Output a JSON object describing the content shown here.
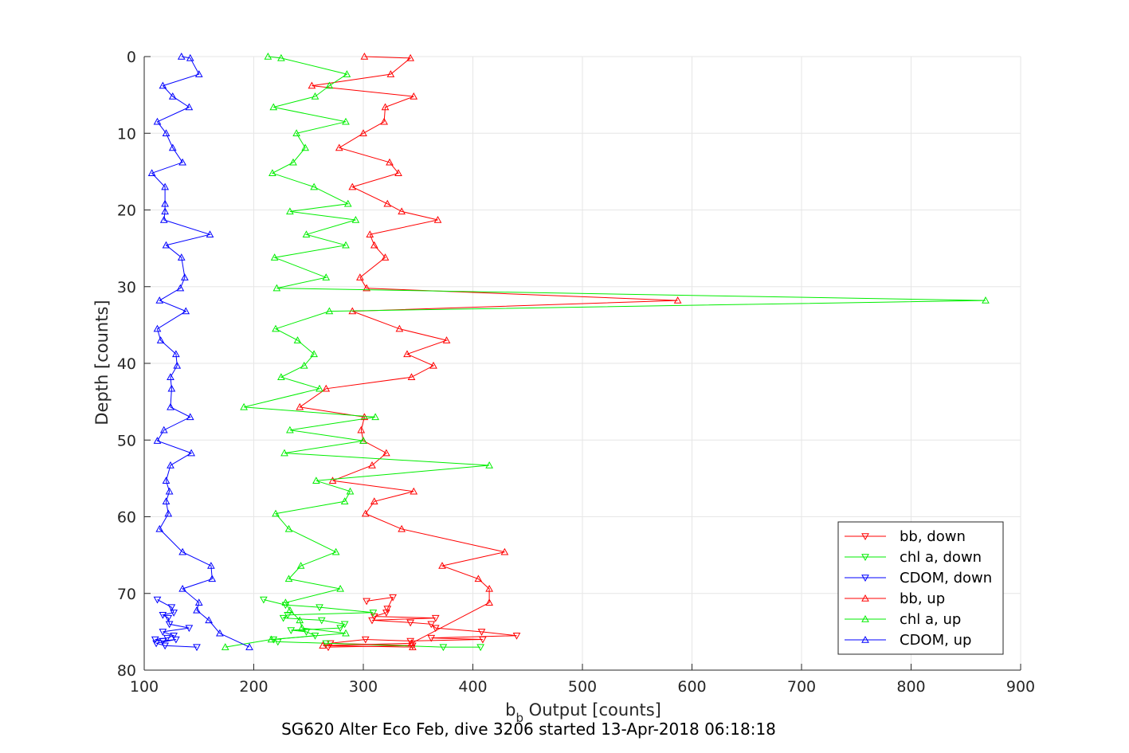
{
  "chart_data": {
    "type": "line",
    "title": "",
    "xlabel": "b_b Output [counts]",
    "xlabel_main": "b",
    "xlabel_sub": "b",
    "xlabel_rest": " Output [counts]",
    "ylabel": "Depth [counts]",
    "xlim": [
      100,
      900
    ],
    "ylim": [
      0,
      80
    ],
    "y_reversed": true,
    "grid": true,
    "legend_position": "bottom-right",
    "xticks": [
      "100",
      "200",
      "300",
      "400",
      "500",
      "600",
      "700",
      "800",
      "900"
    ],
    "yticks": [
      "0",
      "10",
      "20",
      "30",
      "40",
      "50",
      "60",
      "70",
      "80"
    ],
    "series": [
      {
        "name": "bb, down",
        "color": "#ff0000",
        "marker": "triangle-down",
        "x": [
          303,
          327,
          322,
          321,
          310,
          366,
          308,
          343,
          362,
          366,
          408,
          440,
          362,
          409,
          343,
          302,
          270,
          345,
          268
        ],
        "y": [
          71.0,
          70.5,
          72.0,
          72.5,
          73.0,
          73.2,
          73.5,
          73.8,
          74.0,
          74.5,
          75.0,
          75.5,
          75.8,
          76.0,
          76.2,
          76.0,
          76.5,
          76.8,
          77.0
        ]
      },
      {
        "name": "chl a, down",
        "color": "#00ee00",
        "marker": "triangle-down",
        "x": [
          209,
          229,
          260,
          309,
          231,
          227,
          262,
          283,
          279,
          234,
          248,
          256,
          218,
          222,
          266,
          373,
          407
        ],
        "y": [
          70.8,
          71.5,
          71.8,
          72.5,
          72.8,
          73.2,
          73.5,
          74.0,
          74.5,
          74.8,
          75.0,
          75.5,
          76.0,
          76.3,
          76.5,
          77.0,
          77.0
        ]
      },
      {
        "name": "CDOM, down",
        "color": "#0000ff",
        "marker": "triangle-down",
        "x": [
          112,
          125,
          127,
          117,
          122,
          123,
          141,
          117,
          127,
          121,
          110,
          117,
          129,
          111,
          119,
          148
        ],
        "y": [
          70.8,
          71.8,
          72.5,
          72.8,
          73.2,
          74.0,
          74.5,
          75.0,
          75.5,
          75.8,
          76.0,
          76.2,
          76.0,
          76.5,
          76.8,
          77.0
        ]
      },
      {
        "name": "bb, up",
        "color": "#ff0000",
        "marker": "triangle-up",
        "x": [
          301,
          343,
          325,
          253,
          346,
          320,
          319,
          300,
          278,
          324,
          332,
          290,
          322,
          335,
          368,
          306,
          310,
          320,
          297,
          303,
          587,
          290,
          333,
          376,
          340,
          364,
          344,
          266,
          242,
          301,
          298,
          300,
          321,
          308,
          272,
          346,
          310,
          302,
          335,
          429,
          372,
          405,
          415,
          415,
          344,
          263,
          345
        ],
        "y": [
          0.0,
          0.2,
          2.3,
          3.8,
          5.2,
          6.6,
          8.5,
          10.0,
          11.9,
          13.8,
          15.2,
          17.0,
          19.2,
          20.2,
          21.3,
          23.2,
          24.6,
          26.2,
          28.8,
          30.2,
          31.8,
          33.2,
          35.5,
          37.0,
          38.8,
          40.3,
          41.8,
          43.3,
          45.7,
          47.0,
          48.7,
          50.1,
          51.7,
          53.3,
          55.3,
          56.7,
          58.0,
          59.6,
          61.6,
          64.6,
          66.4,
          68.1,
          69.4,
          71.2,
          76.5,
          76.8,
          77.0
        ]
      },
      {
        "name": "chl a, up",
        "color": "#00ee00",
        "marker": "triangle-up",
        "x": [
          213,
          225,
          285,
          269,
          256,
          218,
          284,
          239,
          247,
          236,
          217,
          255,
          286,
          233,
          293,
          248,
          284,
          219,
          266,
          221,
          868,
          269,
          220,
          240,
          255,
          246,
          225,
          260,
          191,
          311,
          233,
          300,
          228,
          415,
          257,
          288,
          283,
          220,
          232,
          275,
          243,
          232,
          279,
          229,
          233,
          242,
          244,
          284,
          216,
          174
        ],
        "y": [
          0.0,
          0.2,
          2.3,
          3.8,
          5.2,
          6.6,
          8.5,
          10.0,
          11.9,
          13.8,
          15.2,
          17.0,
          19.2,
          20.2,
          21.3,
          23.2,
          24.6,
          26.2,
          28.8,
          30.2,
          31.8,
          33.2,
          35.5,
          37.0,
          38.8,
          40.3,
          41.8,
          43.3,
          45.7,
          47.0,
          48.7,
          50.1,
          51.7,
          53.3,
          55.3,
          56.7,
          58.0,
          59.6,
          61.6,
          64.6,
          66.4,
          68.1,
          69.4,
          71.2,
          72.2,
          73.5,
          74.5,
          75.2,
          76.0,
          77.0
        ]
      },
      {
        "name": "CDOM, up",
        "color": "#0000ff",
        "marker": "triangle-up",
        "x": [
          134,
          142,
          150,
          117,
          126,
          141,
          112,
          120,
          126,
          135,
          107,
          119,
          119,
          119,
          118,
          160,
          120,
          134,
          137,
          133,
          114,
          138,
          112,
          115,
          129,
          130,
          124,
          125,
          124,
          142,
          118,
          112,
          143,
          124,
          120,
          123,
          120,
          122,
          114,
          135,
          161,
          162,
          135,
          150,
          148,
          159,
          169,
          196
        ],
        "y": [
          0.0,
          0.2,
          2.3,
          3.8,
          5.2,
          6.6,
          8.5,
          10.0,
          11.9,
          13.8,
          15.2,
          17.0,
          19.2,
          20.2,
          21.3,
          23.2,
          24.6,
          26.2,
          28.8,
          30.2,
          31.8,
          33.2,
          35.5,
          37.0,
          38.8,
          40.3,
          41.8,
          43.3,
          45.7,
          47.0,
          48.7,
          50.1,
          51.7,
          53.3,
          55.3,
          56.7,
          58.0,
          59.6,
          61.6,
          64.6,
          66.4,
          68.1,
          69.4,
          71.2,
          72.2,
          73.5,
          75.2,
          77.0
        ]
      }
    ]
  },
  "caption": "SG620 Alter Eco Feb, dive 3206 started 13-Apr-2018 06:18:18"
}
